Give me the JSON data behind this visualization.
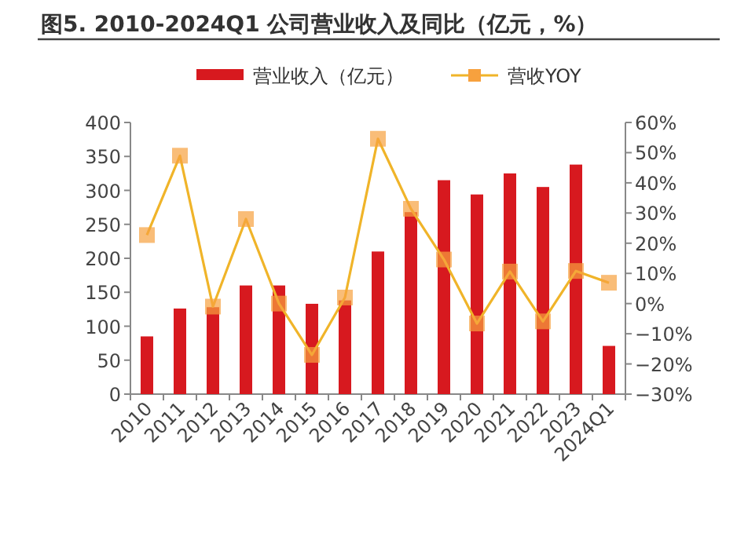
{
  "chart_data": {
    "type": "bar",
    "title": "图5. 2010-2024Q1 公司营业收入及同比（亿元，%）",
    "categories": [
      "2010",
      "2011",
      "2012",
      "2013",
      "2014",
      "2015",
      "2016",
      "2017",
      "2018",
      "2019",
      "2020",
      "2021",
      "2022",
      "2023",
      "2024Q1"
    ],
    "series": [
      {
        "name": "营业收入（亿元）",
        "color": "#d7191f",
        "values": [
          85,
          126,
          128,
          160,
          160,
          133,
          138,
          210,
          268,
          315,
          294,
          325,
          305,
          338,
          71
        ]
      },
      {
        "name": "营收YOY",
        "type": "line",
        "axis": "y2",
        "color": "#f7a13e",
        "marker": "square",
        "values": [
          22.7,
          49,
          -1,
          28,
          0,
          -17,
          2,
          54.6,
          31.4,
          14.6,
          -6.6,
          10.6,
          -5.9,
          10.8,
          6.9
        ]
      }
    ],
    "ylim": [
      0,
      400
    ],
    "yticks": [
      0,
      50,
      100,
      150,
      200,
      250,
      300,
      350,
      400
    ],
    "y2lim": [
      -30,
      60
    ],
    "y2ticks": [
      {
        "value": -30,
        "label": "−30%"
      },
      {
        "value": -20,
        "label": "−20%"
      },
      {
        "value": -10,
        "label": "−10%"
      },
      {
        "value": 0,
        "label": "0%"
      },
      {
        "value": 10,
        "label": "10%"
      },
      {
        "value": 20,
        "label": "20%"
      },
      {
        "value": 30,
        "label": "30%"
      },
      {
        "value": 40,
        "label": "40%"
      },
      {
        "value": 50,
        "label": "50%"
      },
      {
        "value": 60,
        "label": "60%"
      }
    ],
    "legend": "top",
    "grid": false
  }
}
